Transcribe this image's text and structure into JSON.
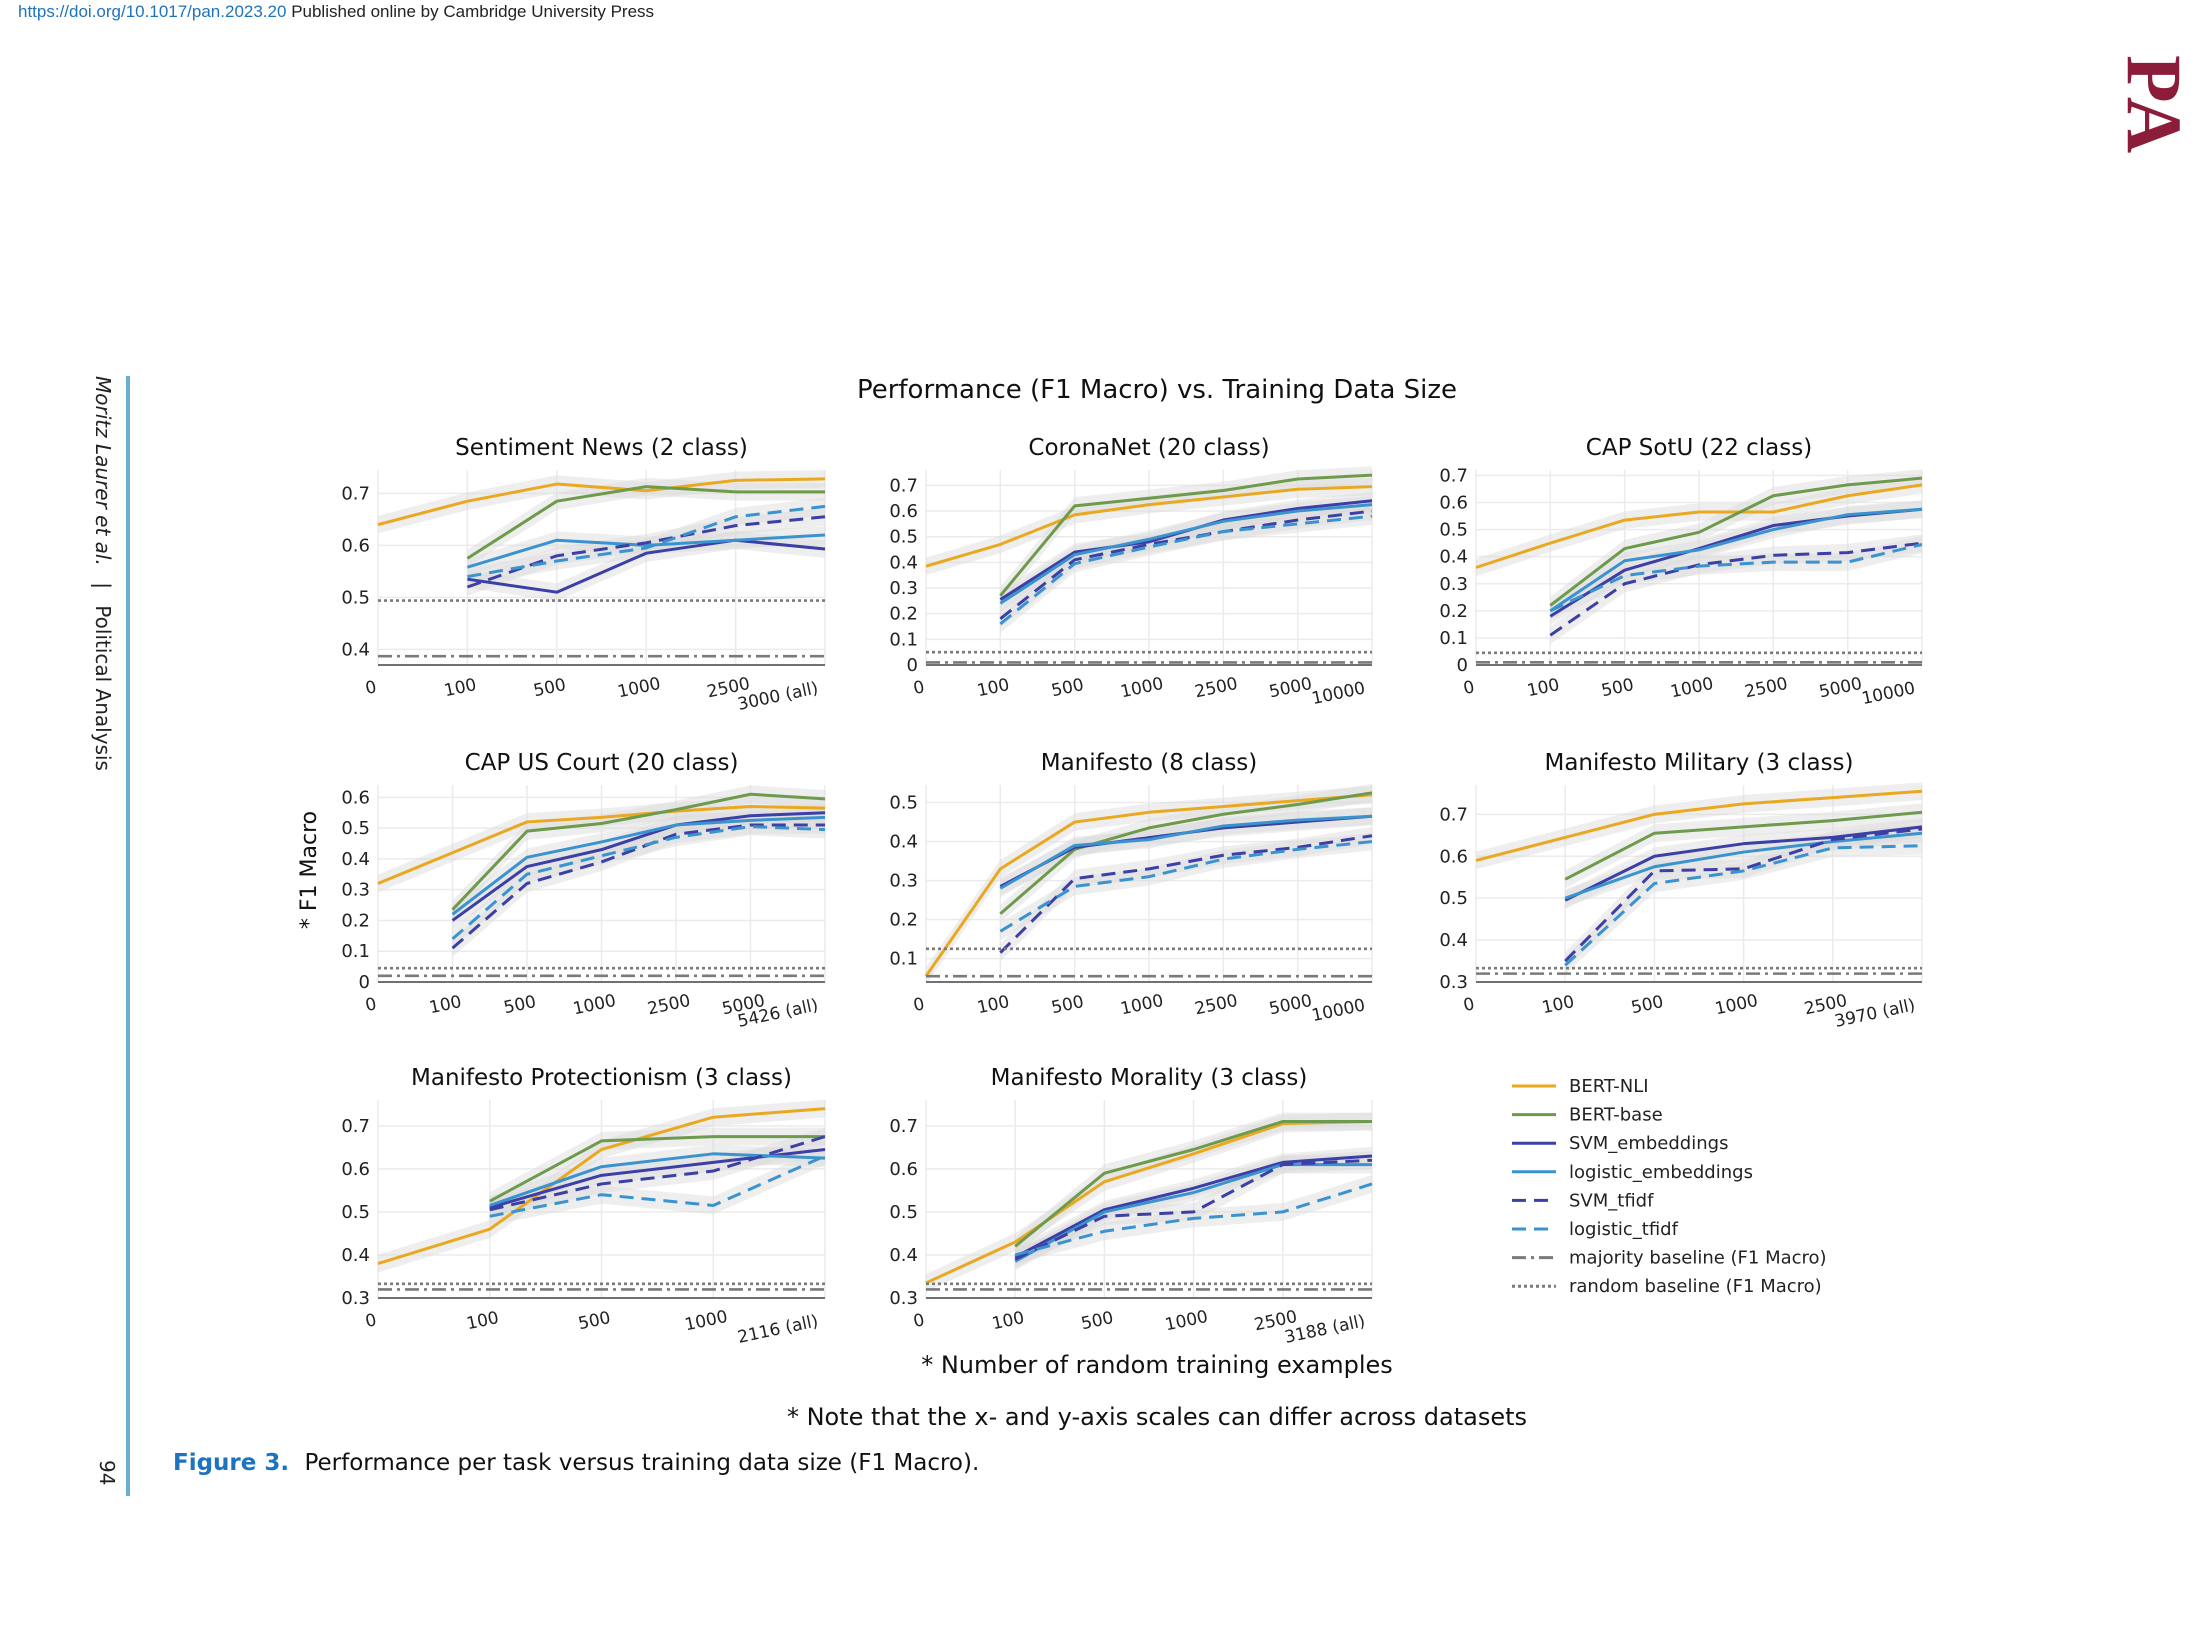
{
  "header": {
    "doi": "https://doi.org/10.1017/pan.2023.20",
    "publisher_note": "Published online by Cambridge University Press",
    "journal_logo": "PA",
    "running_head_authors": "Moritz Laurer et al.",
    "running_head_separator": "|",
    "running_head_journal": "Political Analysis",
    "page_number": "94"
  },
  "colors": {
    "BERT-NLI": "#e9a820",
    "BERT-base": "#6e9a4c",
    "SVM_embeddings": "#3b3fa6",
    "logistic_embeddings": "#3a93cf",
    "SVM_tfidf": "#3b3fa6",
    "logistic_tfidf": "#3a93cf",
    "baseline": "#7a7a7a",
    "band": "#d9d9d9",
    "logo": "#8c1d3a",
    "accent": "#1e73be"
  },
  "figure": {
    "title": "Performance (F1 Macro) vs. Training Data Size",
    "y_title": "* F1 Macro",
    "x_title": "* Number of random training examples",
    "note": "* Note that the x- and y-axis scales can differ across datasets",
    "legend": [
      {
        "label": "BERT-NLI",
        "key": "BERT-NLI",
        "dash": "solid"
      },
      {
        "label": "BERT-base",
        "key": "BERT-base",
        "dash": "solid"
      },
      {
        "label": "SVM_embeddings",
        "key": "SVM_embeddings",
        "dash": "solid"
      },
      {
        "label": "logistic_embeddings",
        "key": "logistic_embeddings",
        "dash": "solid"
      },
      {
        "label": "SVM_tfidf",
        "key": "SVM_tfidf",
        "dash": "dash"
      },
      {
        "label": "logistic_tfidf",
        "key": "logistic_tfidf",
        "dash": "dash"
      },
      {
        "label": "majority baseline (F1 Macro)",
        "key": "baseline",
        "dash": "dashdot"
      },
      {
        "label": "random baseline (F1 Macro)",
        "key": "baseline",
        "dash": "dot"
      }
    ]
  },
  "caption": {
    "label": "Figure 3.",
    "text": "Performance per task versus training data size (F1 Macro)."
  },
  "chart_data": [
    {
      "type": "line",
      "title": "Sentiment News (2 class)",
      "x": [
        "0",
        "100",
        "500",
        "1000",
        "2500",
        "3000 (all)"
      ],
      "ylim": [
        0.37,
        0.745
      ],
      "yticks": [
        0.4,
        0.5,
        0.6,
        0.7
      ],
      "ytick_labels": [
        "0.4",
        "0.5",
        "0.6",
        "0.7"
      ],
      "grid": true,
      "series": [
        {
          "name": "BERT-NLI",
          "values": [
            0.64,
            0.685,
            0.718,
            0.705,
            0.725,
            0.728
          ]
        },
        {
          "name": "BERT-base",
          "values": [
            null,
            0.575,
            0.685,
            0.713,
            0.703,
            0.703
          ]
        },
        {
          "name": "SVM_embeddings",
          "values": [
            null,
            0.535,
            0.51,
            0.585,
            0.61,
            0.593
          ]
        },
        {
          "name": "logistic_embeddings",
          "values": [
            null,
            0.558,
            0.61,
            0.6,
            0.61,
            0.62
          ]
        },
        {
          "name": "SVM_tfidf",
          "values": [
            null,
            0.52,
            0.58,
            0.605,
            0.638,
            0.655
          ]
        },
        {
          "name": "logistic_tfidf",
          "values": [
            null,
            0.54,
            0.57,
            0.595,
            0.655,
            0.675
          ]
        },
        {
          "name": "majority baseline (F1 Macro)",
          "values": [
            0.387,
            0.387,
            0.387,
            0.387,
            0.387,
            0.387
          ]
        },
        {
          "name": "random baseline (F1 Macro)",
          "values": [
            0.494,
            0.494,
            0.494,
            0.494,
            0.494,
            0.494
          ]
        }
      ]
    },
    {
      "type": "line",
      "title": "CoronaNet (20 class)",
      "x": [
        "0",
        "100",
        "500",
        "1000",
        "2500",
        "5000",
        "10000"
      ],
      "ylim": [
        0,
        0.76
      ],
      "yticks": [
        0,
        0.1,
        0.2,
        0.3,
        0.4,
        0.5,
        0.6,
        0.7
      ],
      "ytick_labels": [
        "0",
        "0.1",
        "0.2",
        "0.3",
        "0.4",
        "0.5",
        "0.6",
        "0.7"
      ],
      "grid": true,
      "series": [
        {
          "name": "BERT-NLI",
          "values": [
            0.385,
            0.47,
            0.585,
            0.625,
            0.655,
            0.685,
            0.695
          ]
        },
        {
          "name": "BERT-base",
          "values": [
            null,
            0.27,
            0.62,
            0.65,
            0.68,
            0.725,
            0.74
          ]
        },
        {
          "name": "SVM_embeddings",
          "values": [
            null,
            0.255,
            0.44,
            0.48,
            0.565,
            0.61,
            0.64
          ]
        },
        {
          "name": "logistic_embeddings",
          "values": [
            null,
            0.24,
            0.43,
            0.49,
            0.56,
            0.6,
            0.625
          ]
        },
        {
          "name": "SVM_tfidf",
          "values": [
            null,
            0.18,
            0.41,
            0.47,
            0.52,
            0.565,
            0.6
          ]
        },
        {
          "name": "logistic_tfidf",
          "values": [
            null,
            0.16,
            0.395,
            0.46,
            0.52,
            0.55,
            0.58
          ]
        },
        {
          "name": "majority baseline (F1 Macro)",
          "values": [
            0.01,
            0.01,
            0.01,
            0.01,
            0.01,
            0.01,
            0.01
          ]
        },
        {
          "name": "random baseline (F1 Macro)",
          "values": [
            0.05,
            0.05,
            0.05,
            0.05,
            0.05,
            0.05,
            0.05
          ]
        }
      ]
    },
    {
      "type": "line",
      "title": "CAP SotU (22 class)",
      "x": [
        "0",
        "100",
        "500",
        "1000",
        "2500",
        "5000",
        "10000"
      ],
      "ylim": [
        0,
        0.72
      ],
      "yticks": [
        0,
        0.1,
        0.2,
        0.3,
        0.4,
        0.5,
        0.6,
        0.7
      ],
      "ytick_labels": [
        "0",
        "0.1",
        "0.2",
        "0.3",
        "0.4",
        "0.5",
        "0.6",
        "0.7"
      ],
      "grid": true,
      "series": [
        {
          "name": "BERT-NLI",
          "values": [
            0.36,
            0.45,
            0.535,
            0.565,
            0.565,
            0.625,
            0.665
          ]
        },
        {
          "name": "BERT-base",
          "values": [
            null,
            0.22,
            0.43,
            0.49,
            0.625,
            0.665,
            0.69
          ]
        },
        {
          "name": "SVM_embeddings",
          "values": [
            null,
            0.18,
            0.35,
            0.43,
            0.515,
            0.55,
            0.575
          ]
        },
        {
          "name": "logistic_embeddings",
          "values": [
            null,
            0.2,
            0.385,
            0.425,
            0.5,
            0.555,
            0.575
          ]
        },
        {
          "name": "SVM_tfidf",
          "values": [
            null,
            0.11,
            0.3,
            0.37,
            0.405,
            0.415,
            0.45
          ]
        },
        {
          "name": "logistic_tfidf",
          "values": [
            null,
            0.2,
            0.33,
            0.365,
            0.38,
            0.38,
            0.445
          ]
        },
        {
          "name": "majority baseline (F1 Macro)",
          "values": [
            0.01,
            0.01,
            0.01,
            0.01,
            0.01,
            0.01,
            0.01
          ]
        },
        {
          "name": "random baseline (F1 Macro)",
          "values": [
            0.045,
            0.045,
            0.045,
            0.045,
            0.045,
            0.045,
            0.045
          ]
        }
      ]
    },
    {
      "type": "line",
      "title": "CAP US Court (20 class)",
      "x": [
        "0",
        "100",
        "500",
        "1000",
        "2500",
        "5000",
        "5426 (all)"
      ],
      "ylim": [
        0,
        0.64
      ],
      "yticks": [
        0,
        0.1,
        0.2,
        0.3,
        0.4,
        0.5,
        0.6
      ],
      "ytick_labels": [
        "0",
        "0.1",
        "0.2",
        "0.3",
        "0.4",
        "0.5",
        "0.6"
      ],
      "grid": true,
      "series": [
        {
          "name": "BERT-NLI",
          "values": [
            0.32,
            0.42,
            0.52,
            0.535,
            0.555,
            0.57,
            0.565
          ]
        },
        {
          "name": "BERT-base",
          "values": [
            null,
            0.235,
            0.49,
            0.515,
            0.56,
            0.61,
            0.595
          ]
        },
        {
          "name": "SVM_embeddings",
          "values": [
            null,
            0.2,
            0.375,
            0.43,
            0.51,
            0.54,
            0.55
          ]
        },
        {
          "name": "logistic_embeddings",
          "values": [
            null,
            0.22,
            0.405,
            0.455,
            0.51,
            0.525,
            0.535
          ]
        },
        {
          "name": "SVM_tfidf",
          "values": [
            null,
            0.11,
            0.32,
            0.39,
            0.48,
            0.51,
            0.51
          ]
        },
        {
          "name": "logistic_tfidf",
          "values": [
            null,
            0.14,
            0.35,
            0.41,
            0.47,
            0.505,
            0.495
          ]
        },
        {
          "name": "majority baseline (F1 Macro)",
          "values": [
            0.02,
            0.02,
            0.02,
            0.02,
            0.02,
            0.02,
            0.02
          ]
        },
        {
          "name": "random baseline (F1 Macro)",
          "values": [
            0.045,
            0.045,
            0.045,
            0.045,
            0.045,
            0.045,
            0.045
          ]
        }
      ]
    },
    {
      "type": "line",
      "title": "Manifesto (8 class)",
      "x": [
        "0",
        "100",
        "500",
        "1000",
        "2500",
        "5000",
        "10000"
      ],
      "ylim": [
        0.04,
        0.545
      ],
      "yticks": [
        0.1,
        0.2,
        0.3,
        0.4,
        0.5
      ],
      "ytick_labels": [
        "0.1",
        "0.2",
        "0.3",
        "0.4",
        "0.5"
      ],
      "grid": true,
      "series": [
        {
          "name": "BERT-NLI",
          "values": [
            0.055,
            0.33,
            0.45,
            0.475,
            0.49,
            0.505,
            0.52
          ]
        },
        {
          "name": "BERT-base",
          "values": [
            null,
            0.215,
            0.38,
            0.435,
            0.47,
            0.495,
            0.525
          ]
        },
        {
          "name": "SVM_embeddings",
          "values": [
            null,
            0.285,
            0.385,
            0.41,
            0.435,
            0.45,
            0.465
          ]
        },
        {
          "name": "logistic_embeddings",
          "values": [
            null,
            0.28,
            0.39,
            0.405,
            0.44,
            0.455,
            0.465
          ]
        },
        {
          "name": "SVM_tfidf",
          "values": [
            null,
            0.115,
            0.305,
            0.33,
            0.365,
            0.385,
            0.415
          ]
        },
        {
          "name": "logistic_tfidf",
          "values": [
            null,
            0.17,
            0.285,
            0.31,
            0.355,
            0.38,
            0.4
          ]
        },
        {
          "name": "majority baseline (F1 Macro)",
          "values": [
            0.055,
            0.055,
            0.055,
            0.055,
            0.055,
            0.055,
            0.055
          ]
        },
        {
          "name": "random baseline (F1 Macro)",
          "values": [
            0.125,
            0.125,
            0.125,
            0.125,
            0.125,
            0.125,
            0.125
          ]
        }
      ]
    },
    {
      "type": "line",
      "title": "Manifesto Military (3 class)",
      "x": [
        "0",
        "100",
        "500",
        "1000",
        "2500",
        "3970 (all)"
      ],
      "ylim": [
        0.3,
        0.77
      ],
      "yticks": [
        0.3,
        0.4,
        0.5,
        0.6,
        0.7
      ],
      "ytick_labels": [
        "0.3",
        "0.4",
        "0.5",
        "0.6",
        "0.7"
      ],
      "grid": true,
      "series": [
        {
          "name": "BERT-NLI",
          "values": [
            0.59,
            0.645,
            0.7,
            0.725,
            0.74,
            0.755
          ]
        },
        {
          "name": "BERT-base",
          "values": [
            null,
            0.545,
            0.655,
            0.67,
            0.685,
            0.705
          ]
        },
        {
          "name": "SVM_embeddings",
          "values": [
            null,
            0.495,
            0.6,
            0.63,
            0.645,
            0.67
          ]
        },
        {
          "name": "logistic_embeddings",
          "values": [
            null,
            0.5,
            0.575,
            0.61,
            0.635,
            0.655
          ]
        },
        {
          "name": "SVM_tfidf",
          "values": [
            null,
            0.35,
            0.565,
            0.57,
            0.64,
            0.665
          ]
        },
        {
          "name": "logistic_tfidf",
          "values": [
            null,
            0.34,
            0.535,
            0.565,
            0.62,
            0.625
          ]
        },
        {
          "name": "majority baseline (F1 Macro)",
          "values": [
            0.32,
            0.32,
            0.32,
            0.32,
            0.32,
            0.32
          ]
        },
        {
          "name": "random baseline (F1 Macro)",
          "values": [
            0.333,
            0.333,
            0.333,
            0.333,
            0.333,
            0.333
          ]
        }
      ]
    },
    {
      "type": "line",
      "title": "Manifesto Protectionism (3 class)",
      "x": [
        "0",
        "100",
        "500",
        "1000",
        "2116 (all)"
      ],
      "ylim": [
        0.3,
        0.76
      ],
      "yticks": [
        0.3,
        0.4,
        0.5,
        0.6,
        0.7
      ],
      "ytick_labels": [
        "0.3",
        "0.4",
        "0.5",
        "0.6",
        "0.7"
      ],
      "grid": true,
      "series": [
        {
          "name": "BERT-NLI",
          "values": [
            0.38,
            0.46,
            0.645,
            0.72,
            0.74
          ]
        },
        {
          "name": "BERT-base",
          "values": [
            null,
            0.525,
            0.665,
            0.675,
            0.675
          ]
        },
        {
          "name": "SVM_embeddings",
          "values": [
            null,
            0.51,
            0.585,
            0.615,
            0.645
          ]
        },
        {
          "name": "logistic_embeddings",
          "values": [
            null,
            0.515,
            0.605,
            0.635,
            0.625
          ]
        },
        {
          "name": "SVM_tfidf",
          "values": [
            null,
            0.505,
            0.565,
            0.595,
            0.675
          ]
        },
        {
          "name": "logistic_tfidf",
          "values": [
            null,
            0.49,
            0.54,
            0.515,
            0.63
          ]
        },
        {
          "name": "majority baseline (F1 Macro)",
          "values": [
            0.32,
            0.32,
            0.32,
            0.32,
            0.32
          ]
        },
        {
          "name": "random baseline (F1 Macro)",
          "values": [
            0.333,
            0.333,
            0.333,
            0.333,
            0.333
          ]
        }
      ]
    },
    {
      "type": "line",
      "title": "Manifesto Morality (3 class)",
      "x": [
        "0",
        "100",
        "500",
        "1000",
        "2500",
        "3188 (all)"
      ],
      "ylim": [
        0.3,
        0.76
      ],
      "yticks": [
        0.3,
        0.4,
        0.5,
        0.6,
        0.7
      ],
      "ytick_labels": [
        "0.3",
        "0.4",
        "0.5",
        "0.6",
        "0.7"
      ],
      "grid": true,
      "series": [
        {
          "name": "BERT-NLI",
          "values": [
            0.335,
            0.43,
            0.57,
            0.635,
            0.705,
            0.71
          ]
        },
        {
          "name": "BERT-base",
          "values": [
            null,
            0.42,
            0.59,
            0.645,
            0.71,
            0.71
          ]
        },
        {
          "name": "SVM_embeddings",
          "values": [
            null,
            0.395,
            0.505,
            0.555,
            0.615,
            0.63
          ]
        },
        {
          "name": "logistic_embeddings",
          "values": [
            null,
            0.385,
            0.5,
            0.545,
            0.61,
            0.61
          ]
        },
        {
          "name": "SVM_tfidf",
          "values": [
            null,
            0.39,
            0.49,
            0.5,
            0.61,
            0.62
          ]
        },
        {
          "name": "logistic_tfidf",
          "values": [
            null,
            0.4,
            0.455,
            0.485,
            0.5,
            0.565
          ]
        },
        {
          "name": "majority baseline (F1 Macro)",
          "values": [
            0.32,
            0.32,
            0.32,
            0.32,
            0.32,
            0.32
          ]
        },
        {
          "name": "random baseline (F1 Macro)",
          "values": [
            0.333,
            0.333,
            0.333,
            0.333,
            0.333,
            0.333
          ]
        }
      ]
    }
  ]
}
